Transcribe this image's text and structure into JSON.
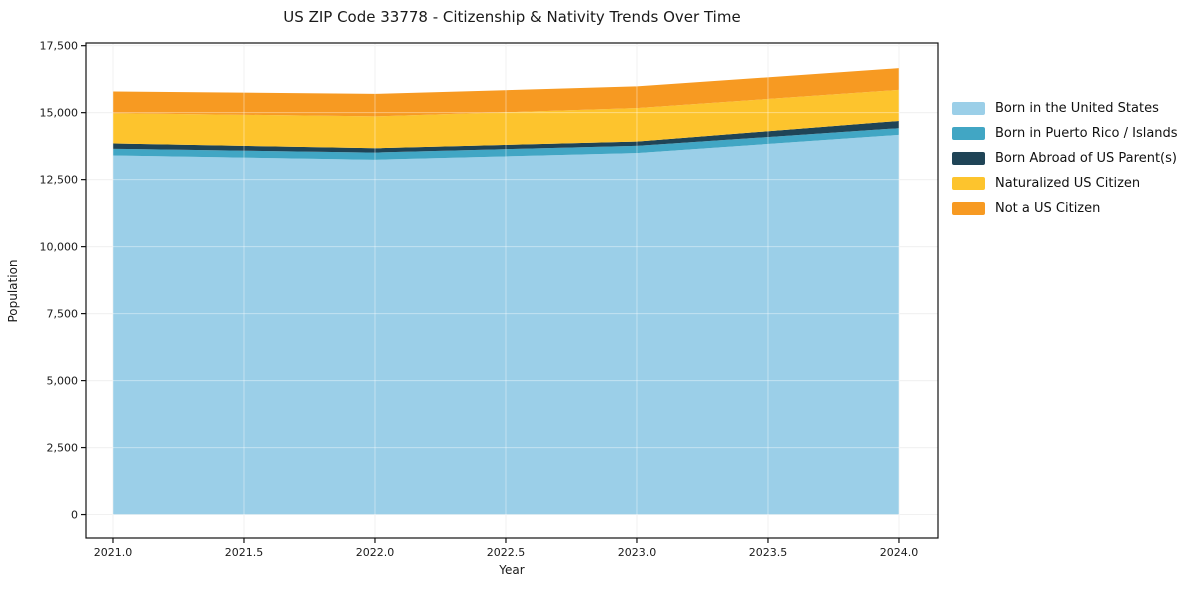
{
  "chart_data": {
    "type": "area",
    "stacked": true,
    "title": "US ZIP Code 33778 - Citizenship & Nativity Trends Over Time",
    "xlabel": "Year",
    "ylabel": "Population",
    "x": [
      2021,
      2022,
      2023,
      2024
    ],
    "series": [
      {
        "name": "Born in the United States",
        "color": "#9bcfe8",
        "values": [
          13400,
          13240,
          13490,
          14170
        ]
      },
      {
        "name": "Born in Puerto Rico / Islands",
        "color": "#41a6c4",
        "values": [
          250,
          270,
          270,
          250
        ]
      },
      {
        "name": "Born Abroad of US Parent(s)",
        "color": "#1f4456",
        "values": [
          200,
          160,
          160,
          270
        ]
      },
      {
        "name": "Naturalized US Citizen",
        "color": "#fdc42d",
        "values": [
          1130,
          1190,
          1250,
          1160
        ]
      },
      {
        "name": "Not a US Citizen",
        "color": "#f79a22",
        "values": [
          810,
          840,
          810,
          810
        ]
      }
    ],
    "stack_totals": [
      15790,
      15700,
      15980,
      16660
    ],
    "xticks": [
      2021.0,
      2021.5,
      2022.0,
      2022.5,
      2023.0,
      2023.5,
      2024.0
    ],
    "xtick_labels": [
      "2021.0",
      "2021.5",
      "2022.0",
      "2022.5",
      "2023.0",
      "2023.5",
      "2024.0"
    ],
    "yticks": [
      0,
      2500,
      5000,
      7500,
      10000,
      12500,
      15000,
      17500
    ],
    "ytick_labels": [
      "0",
      "2,500",
      "5,000",
      "7,500",
      "10,000",
      "12,500",
      "15,000",
      "17,500"
    ],
    "xlim": [
      2020.897,
      2024.149
    ],
    "ylim": [
      -875,
      17600
    ],
    "grid": true,
    "legend_position": "right",
    "colors": {
      "grid": "#e8e8e8",
      "grid_overlay": "rgba(255,255,255,0.40)",
      "spine": "#111111",
      "text": "#1a1a1a",
      "background": "#ffffff"
    }
  }
}
